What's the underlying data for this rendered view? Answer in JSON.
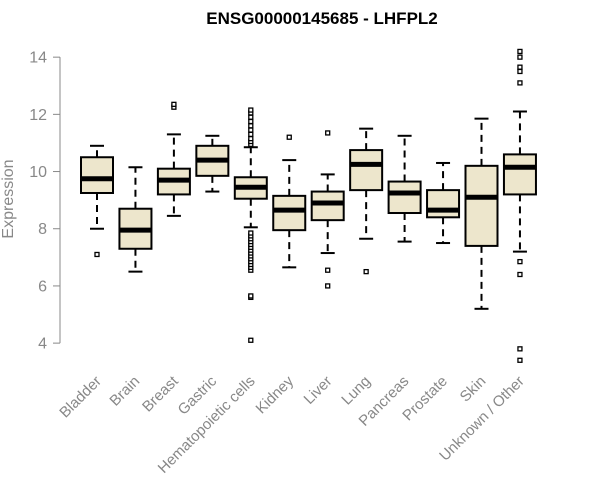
{
  "chart_data": {
    "type": "boxplot",
    "title": "ENSG00000145685 - LHFPL2",
    "ylabel": "Expression",
    "xlabel": "",
    "ylim": [
      3.2,
      14.6
    ],
    "yticks": [
      4,
      6,
      8,
      10,
      12,
      14
    ],
    "grid": false,
    "box_fill": "#ede6cc",
    "box_stroke": "#000000",
    "axis_color": "#888888",
    "categories": [
      "Bladder",
      "Brain",
      "Breast",
      "Gastric",
      "Hematopoietic cells",
      "Kidney",
      "Liver",
      "Lung",
      "Pancreas",
      "Prostate",
      "Skin",
      "Unknown / Other"
    ],
    "boxes": [
      {
        "category": "Bladder",
        "whisker_low": 8.0,
        "q1": 9.25,
        "median": 9.75,
        "q3": 10.5,
        "whisker_high": 10.9,
        "outliers": [
          7.1
        ]
      },
      {
        "category": "Brain",
        "whisker_low": 6.5,
        "q1": 7.3,
        "median": 7.95,
        "q3": 8.7,
        "whisker_high": 10.15,
        "outliers": []
      },
      {
        "category": "Breast",
        "whisker_low": 8.45,
        "q1": 9.2,
        "median": 9.7,
        "q3": 10.1,
        "whisker_high": 11.3,
        "outliers": [
          12.25,
          12.35
        ]
      },
      {
        "category": "Gastric",
        "whisker_low": 9.3,
        "q1": 9.85,
        "median": 10.4,
        "q3": 10.9,
        "whisker_high": 11.25,
        "outliers": []
      },
      {
        "category": "Hematopoietic cells",
        "whisker_low": 8.05,
        "q1": 9.05,
        "median": 9.45,
        "q3": 9.8,
        "whisker_high": 10.85,
        "outliers": [
          4.1,
          5.6,
          5.65,
          6.55,
          6.65,
          6.75,
          6.85,
          6.95,
          7.05,
          7.15,
          7.25,
          7.35,
          7.45,
          7.55,
          7.65,
          7.75,
          7.85,
          10.95,
          11.05,
          11.15,
          11.3,
          11.45,
          11.6,
          11.75,
          11.9,
          12.05,
          12.15
        ]
      },
      {
        "category": "Kidney",
        "whisker_low": 6.65,
        "q1": 7.95,
        "median": 8.65,
        "q3": 9.15,
        "whisker_high": 10.4,
        "outliers": [
          11.2
        ]
      },
      {
        "category": "Liver",
        "whisker_low": 7.15,
        "q1": 8.3,
        "median": 8.9,
        "q3": 9.3,
        "whisker_high": 9.9,
        "outliers": [
          6.0,
          6.55,
          11.35
        ]
      },
      {
        "category": "Lung",
        "whisker_low": 7.65,
        "q1": 9.35,
        "median": 10.25,
        "q3": 10.75,
        "whisker_high": 11.5,
        "outliers": [
          6.5
        ]
      },
      {
        "category": "Pancreas",
        "whisker_low": 7.55,
        "q1": 8.55,
        "median": 9.25,
        "q3": 9.65,
        "whisker_high": 11.25,
        "outliers": []
      },
      {
        "category": "Prostate",
        "whisker_low": 7.5,
        "q1": 8.4,
        "median": 8.65,
        "q3": 9.35,
        "whisker_high": 10.3,
        "outliers": []
      },
      {
        "category": "Skin",
        "whisker_low": 5.2,
        "q1": 7.4,
        "median": 9.1,
        "q3": 10.2,
        "whisker_high": 11.85,
        "outliers": []
      },
      {
        "category": "Unknown / Other",
        "whisker_low": 7.2,
        "q1": 9.2,
        "median": 10.15,
        "q3": 10.6,
        "whisker_high": 12.1,
        "outliers": [
          3.4,
          3.8,
          6.4,
          6.85,
          13.1,
          13.5,
          13.65,
          14.0,
          14.2
        ]
      }
    ]
  }
}
